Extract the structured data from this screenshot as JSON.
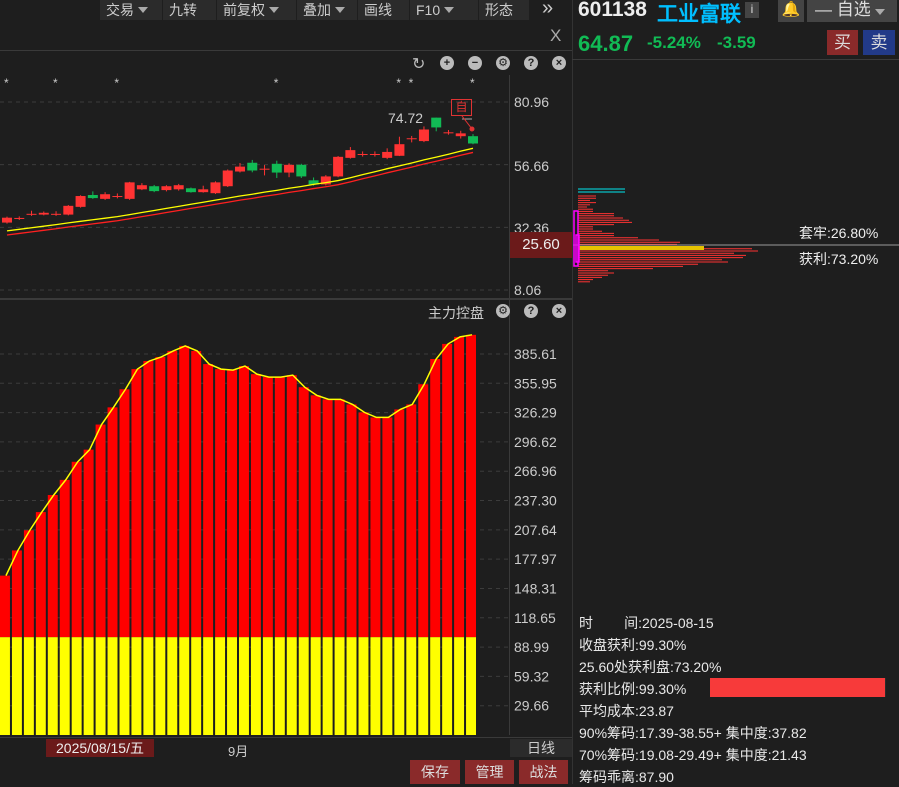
{
  "toolbar": {
    "items": [
      "交易",
      "九转",
      "前复权",
      "叠加",
      "画线",
      "F10",
      "形态"
    ],
    "has_dropdown": [
      true,
      false,
      true,
      true,
      false,
      true,
      false
    ],
    "more": "»",
    "close": "X"
  },
  "stock": {
    "code": "601138",
    "name": "工业富联",
    "info_icon": "i",
    "watch_label": "自选",
    "price": "64.87",
    "change_pct": "-5.24%",
    "change": "-3.59",
    "buy": "买",
    "sell": "卖"
  },
  "colors": {
    "up": "#ff3333",
    "down": "#11bb55",
    "ma1": "#ffff00",
    "ma2": "#ff2020",
    "accent_name": "#00bfff"
  },
  "upper": {
    "axis": [
      "80.96",
      "56.66",
      "32.36",
      "8.06"
    ],
    "max_label": "74.72",
    "self_mark": "自",
    "current_price_label": "25.60",
    "event_marker": "*",
    "event_indices": [
      0,
      4,
      9,
      22,
      32,
      33,
      38
    ]
  },
  "chart_data": [
    {
      "type": "candlestick",
      "ylim": [
        8.06,
        80.96
      ],
      "candles": [
        [
          34.2,
          36.1,
          36.5,
          33.8
        ],
        [
          35.8,
          36,
          36.6,
          35.2
        ],
        [
          37.6,
          37.6,
          38.8,
          36.8
        ],
        [
          37.3,
          38,
          38.5,
          37
        ],
        [
          37.6,
          37.6,
          38.6,
          36.8
        ],
        [
          37.3,
          40.7,
          41,
          37
        ],
        [
          40.3,
          44.5,
          44.8,
          40
        ],
        [
          44.9,
          43.7,
          46.3,
          43.4
        ],
        [
          43.4,
          45.2,
          46,
          43
        ],
        [
          44.5,
          44.5,
          45.5,
          43.6
        ],
        [
          43.4,
          49.8,
          50,
          43
        ],
        [
          47.1,
          48.7,
          49.5,
          46.8
        ],
        [
          48.3,
          46.4,
          48.8,
          46
        ],
        [
          46.8,
          48.3,
          48.7,
          46.3
        ],
        [
          47.1,
          48.7,
          49.2,
          46.6
        ],
        [
          47.5,
          46,
          47.8,
          45.8
        ],
        [
          46,
          47.1,
          48.5,
          45.8
        ],
        [
          45.6,
          49.8,
          50.2,
          45.3
        ],
        [
          48.3,
          54.4,
          54.8,
          48
        ],
        [
          54,
          55.9,
          57.3,
          53.6
        ],
        [
          57.4,
          54.4,
          58.5,
          53.7
        ],
        [
          55.1,
          55.1,
          56.5,
          52.5
        ],
        [
          57,
          53.6,
          58.2,
          51.5
        ],
        [
          53.6,
          56.6,
          57.2,
          51.8
        ],
        [
          56.6,
          52.1,
          57,
          51.5
        ],
        [
          50.6,
          49,
          51.7,
          48.5
        ],
        [
          49,
          52.1,
          52.6,
          48.6
        ],
        [
          52.1,
          59.7,
          60,
          51.8
        ],
        [
          59.3,
          62.3,
          63.5,
          59
        ],
        [
          60.8,
          60.8,
          61.8,
          59.8
        ],
        [
          60.8,
          60.8,
          61.8,
          59.8
        ],
        [
          59.3,
          61.6,
          63,
          58.8
        ],
        [
          60.1,
          64.6,
          67.5,
          60
        ],
        [
          66.9,
          66.9,
          67.8,
          65.3
        ],
        [
          65.8,
          70.3,
          71.5,
          65.4
        ],
        [
          74.9,
          71.1,
          74.9,
          69.6
        ],
        [
          69.2,
          69.2,
          70.1,
          68.3
        ],
        [
          67.7,
          68.8,
          69.8,
          66.8
        ],
        [
          67.7,
          64.87,
          68.5,
          64.6
        ]
      ],
      "ma_yellow": [
        31,
        31.6,
        32.2,
        32.8,
        33.4,
        34.1,
        34.7,
        35.3,
        35.9,
        36.5,
        37.3,
        38.1,
        38.9,
        39.7,
        40.5,
        41.3,
        42.1,
        42.9,
        43.7,
        44.5,
        45.2,
        46,
        46.7,
        47.5,
        48.2,
        49,
        49.7,
        50.5,
        51.6,
        52.8,
        53.9,
        55.1,
        56.2,
        57.3,
        58.5,
        59.6,
        60.7,
        61.9,
        63
      ],
      "ma_red": [
        29.4,
        30,
        30.6,
        31.2,
        31.8,
        32.5,
        33.1,
        33.7,
        34.3,
        34.9,
        35.7,
        36.5,
        37.3,
        38.1,
        38.9,
        39.7,
        40.5,
        41.3,
        42.1,
        42.9,
        43.6,
        44.4,
        45.1,
        45.9,
        46.6,
        47.4,
        48.1,
        48.9,
        50,
        51.2,
        52.3,
        53.5,
        54.6,
        55.7,
        56.9,
        58,
        59.1,
        60.3,
        61.4
      ]
    },
    {
      "type": "bar",
      "title": "主力控盘",
      "ylim": [
        0,
        420
      ],
      "ticks": [
        "385.61",
        "355.95",
        "326.29",
        "296.62",
        "266.96",
        "237.30",
        "207.64",
        "177.97",
        "148.31",
        "118.65",
        "88.99",
        "59.32",
        "29.66"
      ],
      "values": [
        161.3,
        186.8,
        207.2,
        225.6,
        242.9,
        258.2,
        276.5,
        288.8,
        314.2,
        331.6,
        349.9,
        370.3,
        378.5,
        382.6,
        388.7,
        393.8,
        388.7,
        375.4,
        370.3,
        369.3,
        373.4,
        365.2,
        362.2,
        362.2,
        364.2,
        352,
        343.8,
        339.7,
        339.7,
        334.6,
        326.5,
        321.4,
        321.4,
        329.5,
        334.6,
        355,
        380.5,
        395.8,
        402.9,
        405
      ],
      "base_value": 99,
      "bar_color": "#ff0000",
      "base_color": "#ffff00",
      "line_color": "#ffff00"
    }
  ],
  "lower": {
    "title": "主力控盘"
  },
  "chips": {
    "trapped_label": "套牢:26.80%",
    "profit_label": "获利:73.20%",
    "rows": [
      0.06,
      0.06,
      0.04,
      0.06,
      0.04,
      0.03,
      0.05,
      0.05,
      0.12,
      0.12,
      0.15,
      0.17,
      0.18,
      0.12,
      0.05,
      0.05,
      0.08,
      0.12,
      0.12,
      0.2,
      0.27,
      0.34,
      0.33,
      0.28,
      0.58,
      0.6,
      0.52,
      0.56,
      0.55,
      0.48,
      0.5,
      0.4,
      0.35,
      0.25,
      0.1,
      0.12,
      0.1,
      0.08,
      0.05,
      0.04
    ],
    "profit_ratio": 0.993
  },
  "info": {
    "time": "时        间:2025-08-15",
    "close_profit": "收盘获利:99.30%",
    "at_price": "25.60处获利盘:73.20%",
    "ratio": "获利比例:99.30%",
    "avg_cost": "平均成本:23.87",
    "c90": "90%筹码:17.39-38.55+ 集中度:37.82",
    "c70": "70%筹码:19.08-29.49+ 集中度:21.43",
    "deviation": "筹码乖离:87.90"
  },
  "bottom": {
    "date": "2025/08/15/五",
    "month": "9月",
    "period": "日线",
    "save": "保存",
    "manage": "管理",
    "strategy": "战法"
  }
}
